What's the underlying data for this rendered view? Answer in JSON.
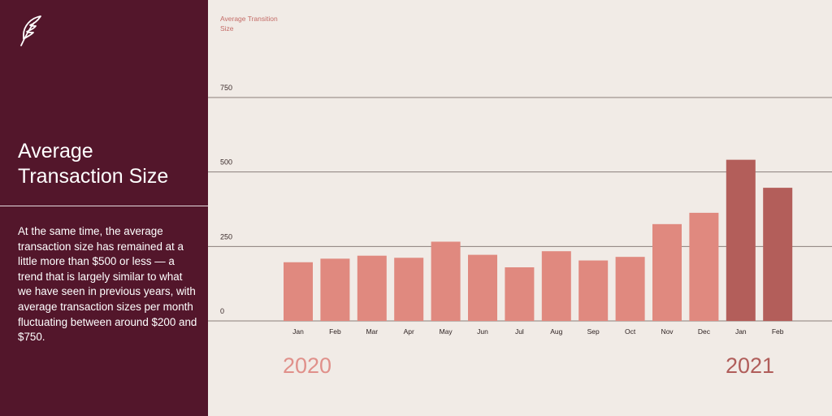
{
  "sidebar": {
    "logo_icon": "feather-icon",
    "title": "Average Transaction Size",
    "body": "At the same time, the average transaction size has remained at a little more than $500 or less — a trend that is largely similar to what we have seen in previous years, with average transaction sizes per month fluctuating between around $200 and $750."
  },
  "colors": {
    "sidebar_bg": "#53162b",
    "page_bg": "#f1ebe6",
    "bar_2020": "#e0897f",
    "bar_2021": "#b35e5a",
    "accent_text": "#c46c67"
  },
  "years": [
    "2020",
    "2021"
  ],
  "chart_data": {
    "type": "bar",
    "title": "",
    "ylabel": "Average Transition Size",
    "xlabel": "",
    "categories": [
      "Jan",
      "Feb",
      "Mar",
      "Apr",
      "May",
      "Jun",
      "Jul",
      "Aug",
      "Sep",
      "Oct",
      "Nov",
      "Dec",
      "Jan",
      "Feb"
    ],
    "groups": [
      "2020",
      "2020",
      "2020",
      "2020",
      "2020",
      "2020",
      "2020",
      "2020",
      "2020",
      "2020",
      "2020",
      "2020",
      "2021",
      "2021"
    ],
    "values": [
      197,
      209,
      219,
      212,
      266,
      222,
      180,
      234,
      203,
      215,
      325,
      363,
      541,
      447
    ],
    "yticks": [
      0,
      250,
      500,
      750
    ],
    "ylim": [
      0,
      750
    ],
    "grid": true,
    "legend": "none"
  }
}
